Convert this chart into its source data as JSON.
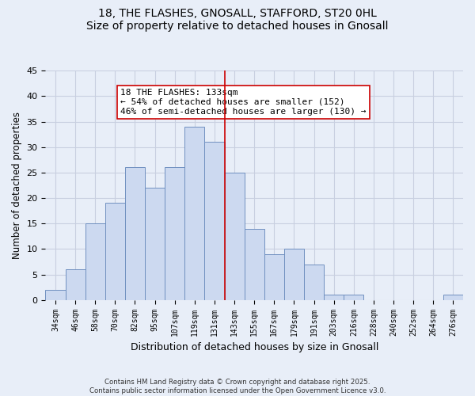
{
  "title": "18, THE FLASHES, GNOSALL, STAFFORD, ST20 0HL",
  "subtitle": "Size of property relative to detached houses in Gnosall",
  "xlabel": "Distribution of detached houses by size in Gnosall",
  "ylabel": "Number of detached properties",
  "bin_labels": [
    "34sqm",
    "46sqm",
    "58sqm",
    "70sqm",
    "82sqm",
    "95sqm",
    "107sqm",
    "119sqm",
    "131sqm",
    "143sqm",
    "155sqm",
    "167sqm",
    "179sqm",
    "191sqm",
    "203sqm",
    "216sqm",
    "228sqm",
    "240sqm",
    "252sqm",
    "264sqm",
    "276sqm"
  ],
  "bar_values": [
    2,
    6,
    15,
    19,
    26,
    22,
    26,
    34,
    31,
    25,
    14,
    9,
    10,
    7,
    1,
    1,
    0,
    0,
    0,
    0,
    1
  ],
  "bar_color": "#ccd9f0",
  "bar_edge_color": "#7090c0",
  "vline_color": "#cc0000",
  "vline_bin_index": 8,
  "annotation_title": "18 THE FLASHES: 133sqm",
  "annotation_line1": "← 54% of detached houses are smaller (152)",
  "annotation_line2": "46% of semi-detached houses are larger (130) →",
  "annotation_box_color": "#ffffff",
  "annotation_box_edge": "#cc0000",
  "ylim": [
    0,
    45
  ],
  "yticks": [
    0,
    5,
    10,
    15,
    20,
    25,
    30,
    35,
    40,
    45
  ],
  "grid_color": "#c8cfe0",
  "background_color": "#e8eef8",
  "footer_line1": "Contains HM Land Registry data © Crown copyright and database right 2025.",
  "footer_line2": "Contains public sector information licensed under the Open Government Licence v3.0."
}
